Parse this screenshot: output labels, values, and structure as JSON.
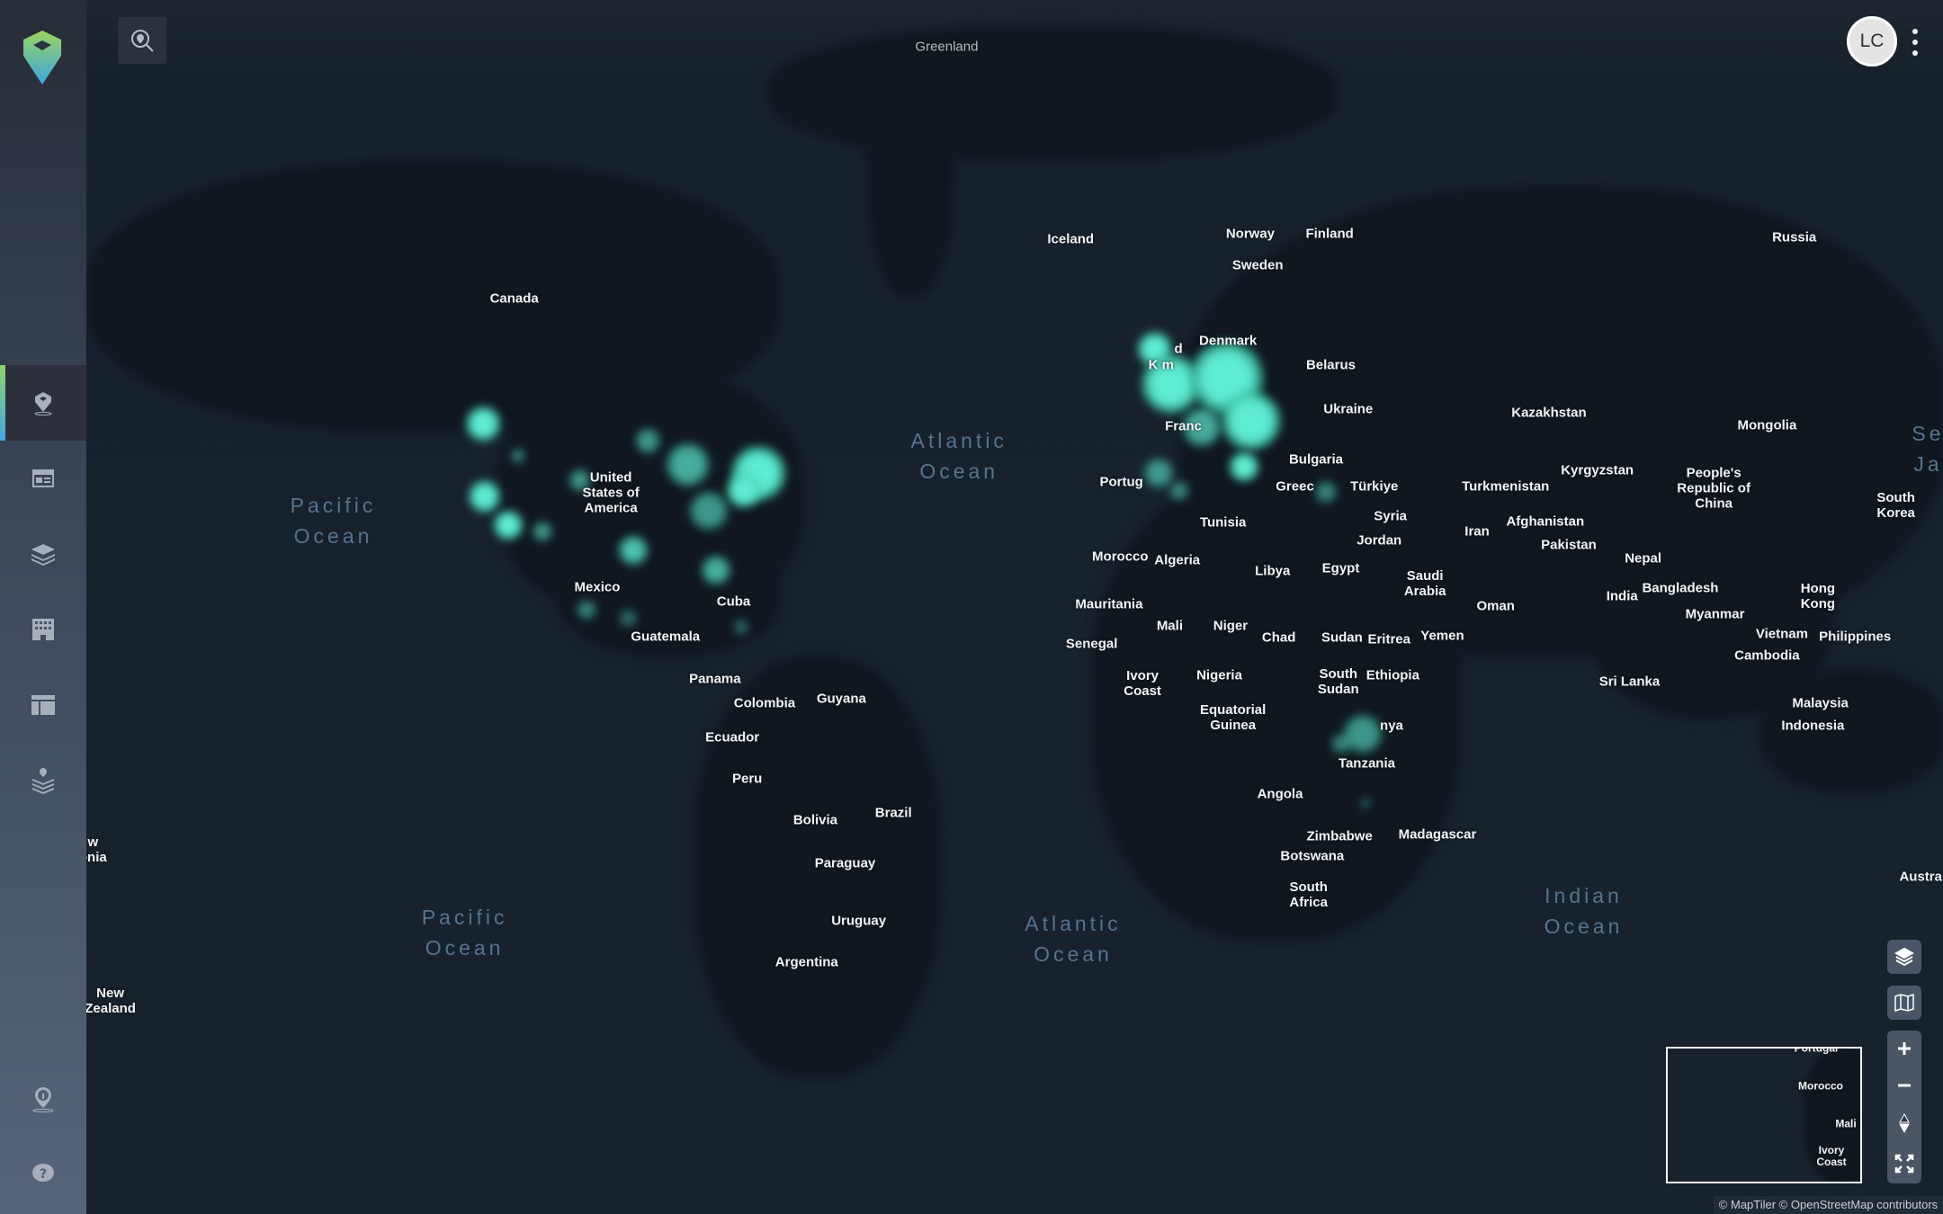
{
  "app": {
    "avatar_initials": "LC"
  },
  "sidebar": {
    "items": [
      {
        "name": "map-pin",
        "active": true
      },
      {
        "name": "dashboard"
      },
      {
        "name": "layers"
      },
      {
        "name": "building"
      },
      {
        "name": "layout"
      },
      {
        "name": "stacked-layers-pin"
      }
    ],
    "bottom_items": [
      {
        "name": "location-info"
      },
      {
        "name": "help"
      }
    ]
  },
  "map": {
    "country_labels": [
      "Greenland",
      "Iceland",
      "Norway",
      "Finland",
      "Sweden",
      "Russia",
      "Canada",
      "Denmark",
      "Belarus",
      "Ukraine",
      "Kazakhstan",
      "Mongolia",
      "United\nStates of\nAmerica",
      "Bulgaria",
      "Portug",
      "Greec",
      "Türkiye",
      "Turkmenistan",
      "Kyrgyzstan",
      "People's\nRepublic of\nChina",
      "South\nKorea",
      "Syria",
      "Afghanistan",
      "Tunisia",
      "Iran",
      "Jordan",
      "Pakistan",
      "Morocco",
      "Algeria",
      "Libya",
      "Egypt",
      "Saudi\nArabia",
      "Nepal",
      "Mexico",
      "Hong\nKong",
      "India",
      "Bangladesh",
      "Cuba",
      "Oman",
      "Mauritania",
      "Myanmar",
      "Mali",
      "Niger",
      "Chad",
      "Sudan",
      "Eritrea",
      "Yemen",
      "Vietnam",
      "Philippines",
      "Guatemala",
      "Senegal",
      "Cambodia",
      "Ivory\nCoast",
      "Nigeria",
      "South\nSudan",
      "Ethiopia",
      "Panama",
      "Sri Lanka",
      "Guyana",
      "Colombia",
      "Malaysia",
      "Equatorial\nGuinea",
      "nya",
      "Indonesia",
      "Ecuador",
      "Tanzania",
      "Peru",
      "Angola",
      "Brazil",
      "Bolivia",
      "Zimbabwe",
      "Madagascar",
      "Botswana",
      "Paraguay",
      "South\nAfrica",
      "Uruguay",
      "Argentina",
      "New\nZealand",
      "w\nonia",
      "Austra",
      "d",
      "K     m",
      "Franc"
    ],
    "ocean_labels": [
      "Atlantic\nOcean",
      "Pacific\nOcean",
      "Indian\nOcean",
      "Pacific\nOcean",
      "Atlantic\nOcean",
      "Se\nJa"
    ],
    "heatmap_color": "#5eecd2",
    "minimap_labels": [
      "Portugal",
      "Morocco",
      "Mali",
      "Ivory\nCoast"
    ],
    "attribution": "© MapTiler © OpenStreetMap contributors"
  },
  "controls": {
    "items": [
      "layers-button",
      "basemap-button",
      "zoom-in-button",
      "zoom-out-button",
      "compass-button",
      "fullscreen-button"
    ]
  }
}
